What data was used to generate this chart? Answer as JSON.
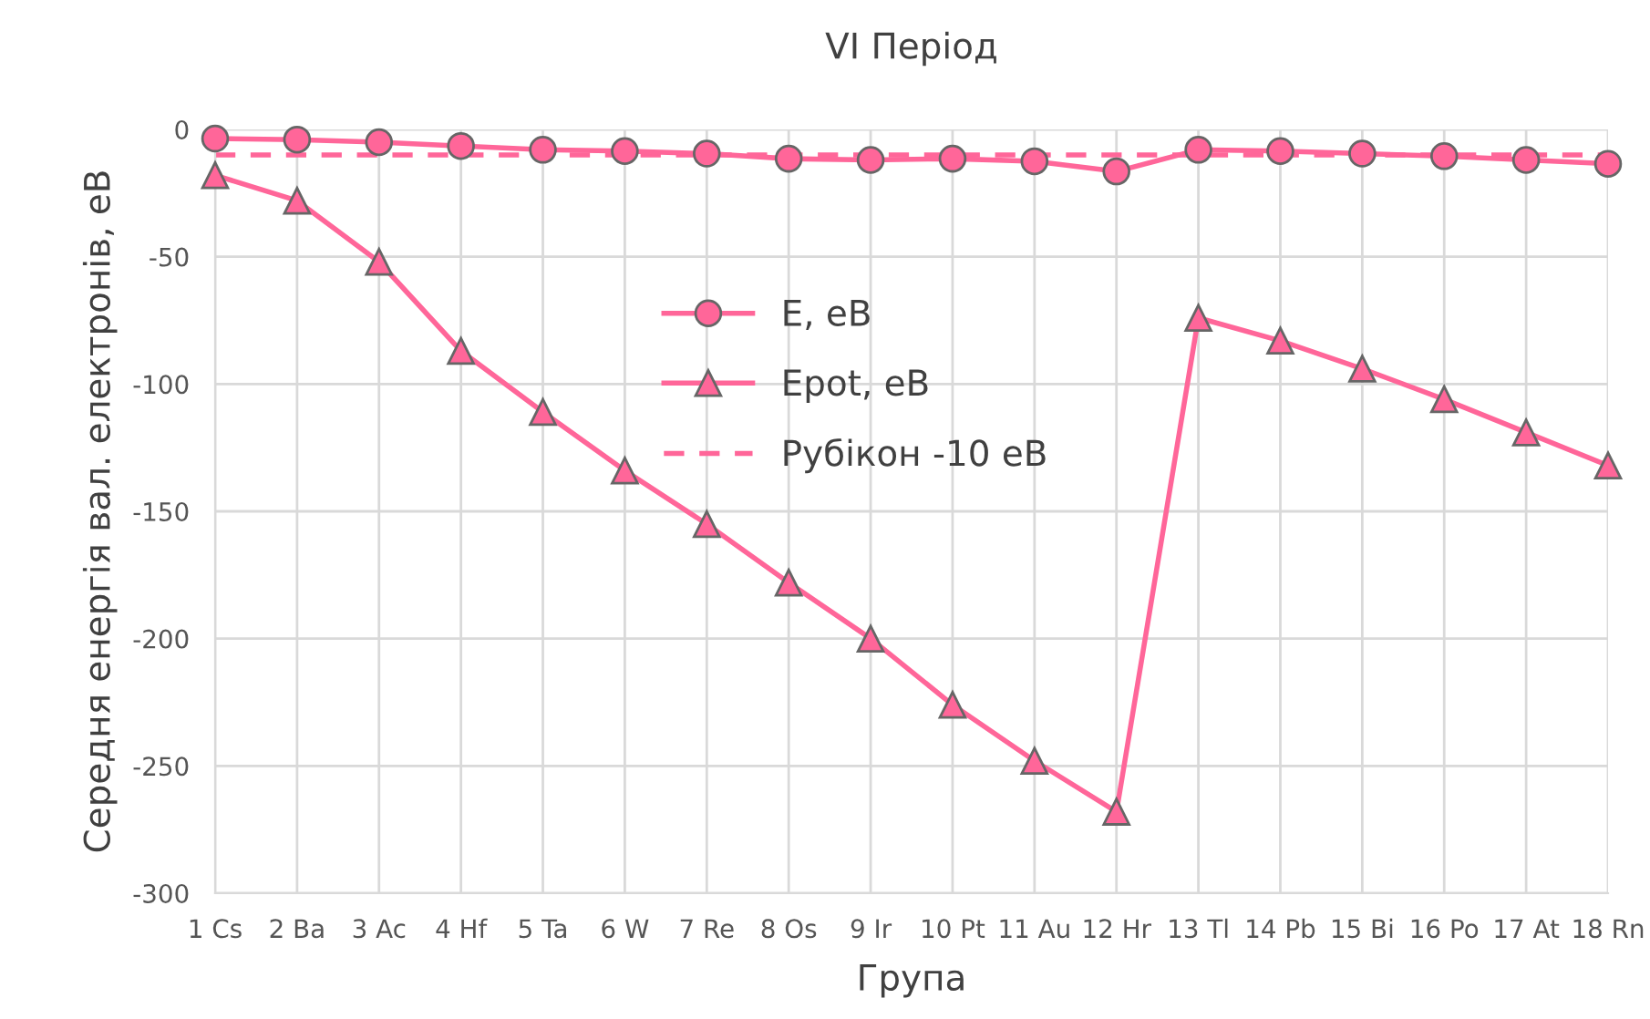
{
  "chart_data": {
    "type": "line",
    "title": "VI Період",
    "xlabel": "Група",
    "ylabel": "Середня енергія вал. електронів, еВ",
    "categories": [
      "1 Cs",
      "2 Ba",
      "3 Ac",
      "4 Hf",
      "5 Ta",
      "6 W",
      "7 Re",
      "8 Os",
      "9 Ir",
      "10 Pt",
      "11 Au",
      "12 Hr",
      "13 Tl",
      "14 Pb",
      "15 Bi",
      "16 Po",
      "17 At",
      "18 Rn"
    ],
    "series": [
      {
        "name": "Е, еВ",
        "color": "#ff6699",
        "marker": "circle",
        "line_style": "solid",
        "values": [
          -3.6,
          -4,
          -5,
          -6.5,
          -8,
          -8.5,
          -9.5,
          -11.5,
          -12,
          -11.5,
          -12.5,
          -16.5,
          -8,
          -8.5,
          -9.5,
          -10.5,
          -12,
          -13.5
        ]
      },
      {
        "name": "Epot, еВ",
        "color": "#ff6699",
        "marker": "triangle",
        "line_style": "solid",
        "values": [
          -18,
          -28,
          -52,
          -87,
          -111,
          -134,
          -155,
          -178,
          -200,
          -226,
          -248,
          -268,
          -74,
          -83,
          -94,
          -106,
          -119,
          -132
        ]
      },
      {
        "name": "Рубікон -10 еВ",
        "color": "#ff6699",
        "marker": "none",
        "line_style": "dashed",
        "values": [
          -10,
          -10,
          -10,
          -10,
          -10,
          -10,
          -10,
          -10,
          -10,
          -10,
          -10,
          -10,
          -10,
          -10,
          -10,
          -10,
          -10,
          -10
        ]
      }
    ],
    "ylim": [
      -300,
      0
    ],
    "yticks": [
      -300,
      -250,
      -200,
      -150,
      -100,
      -50,
      0
    ],
    "grid": true,
    "legend": "top"
  }
}
